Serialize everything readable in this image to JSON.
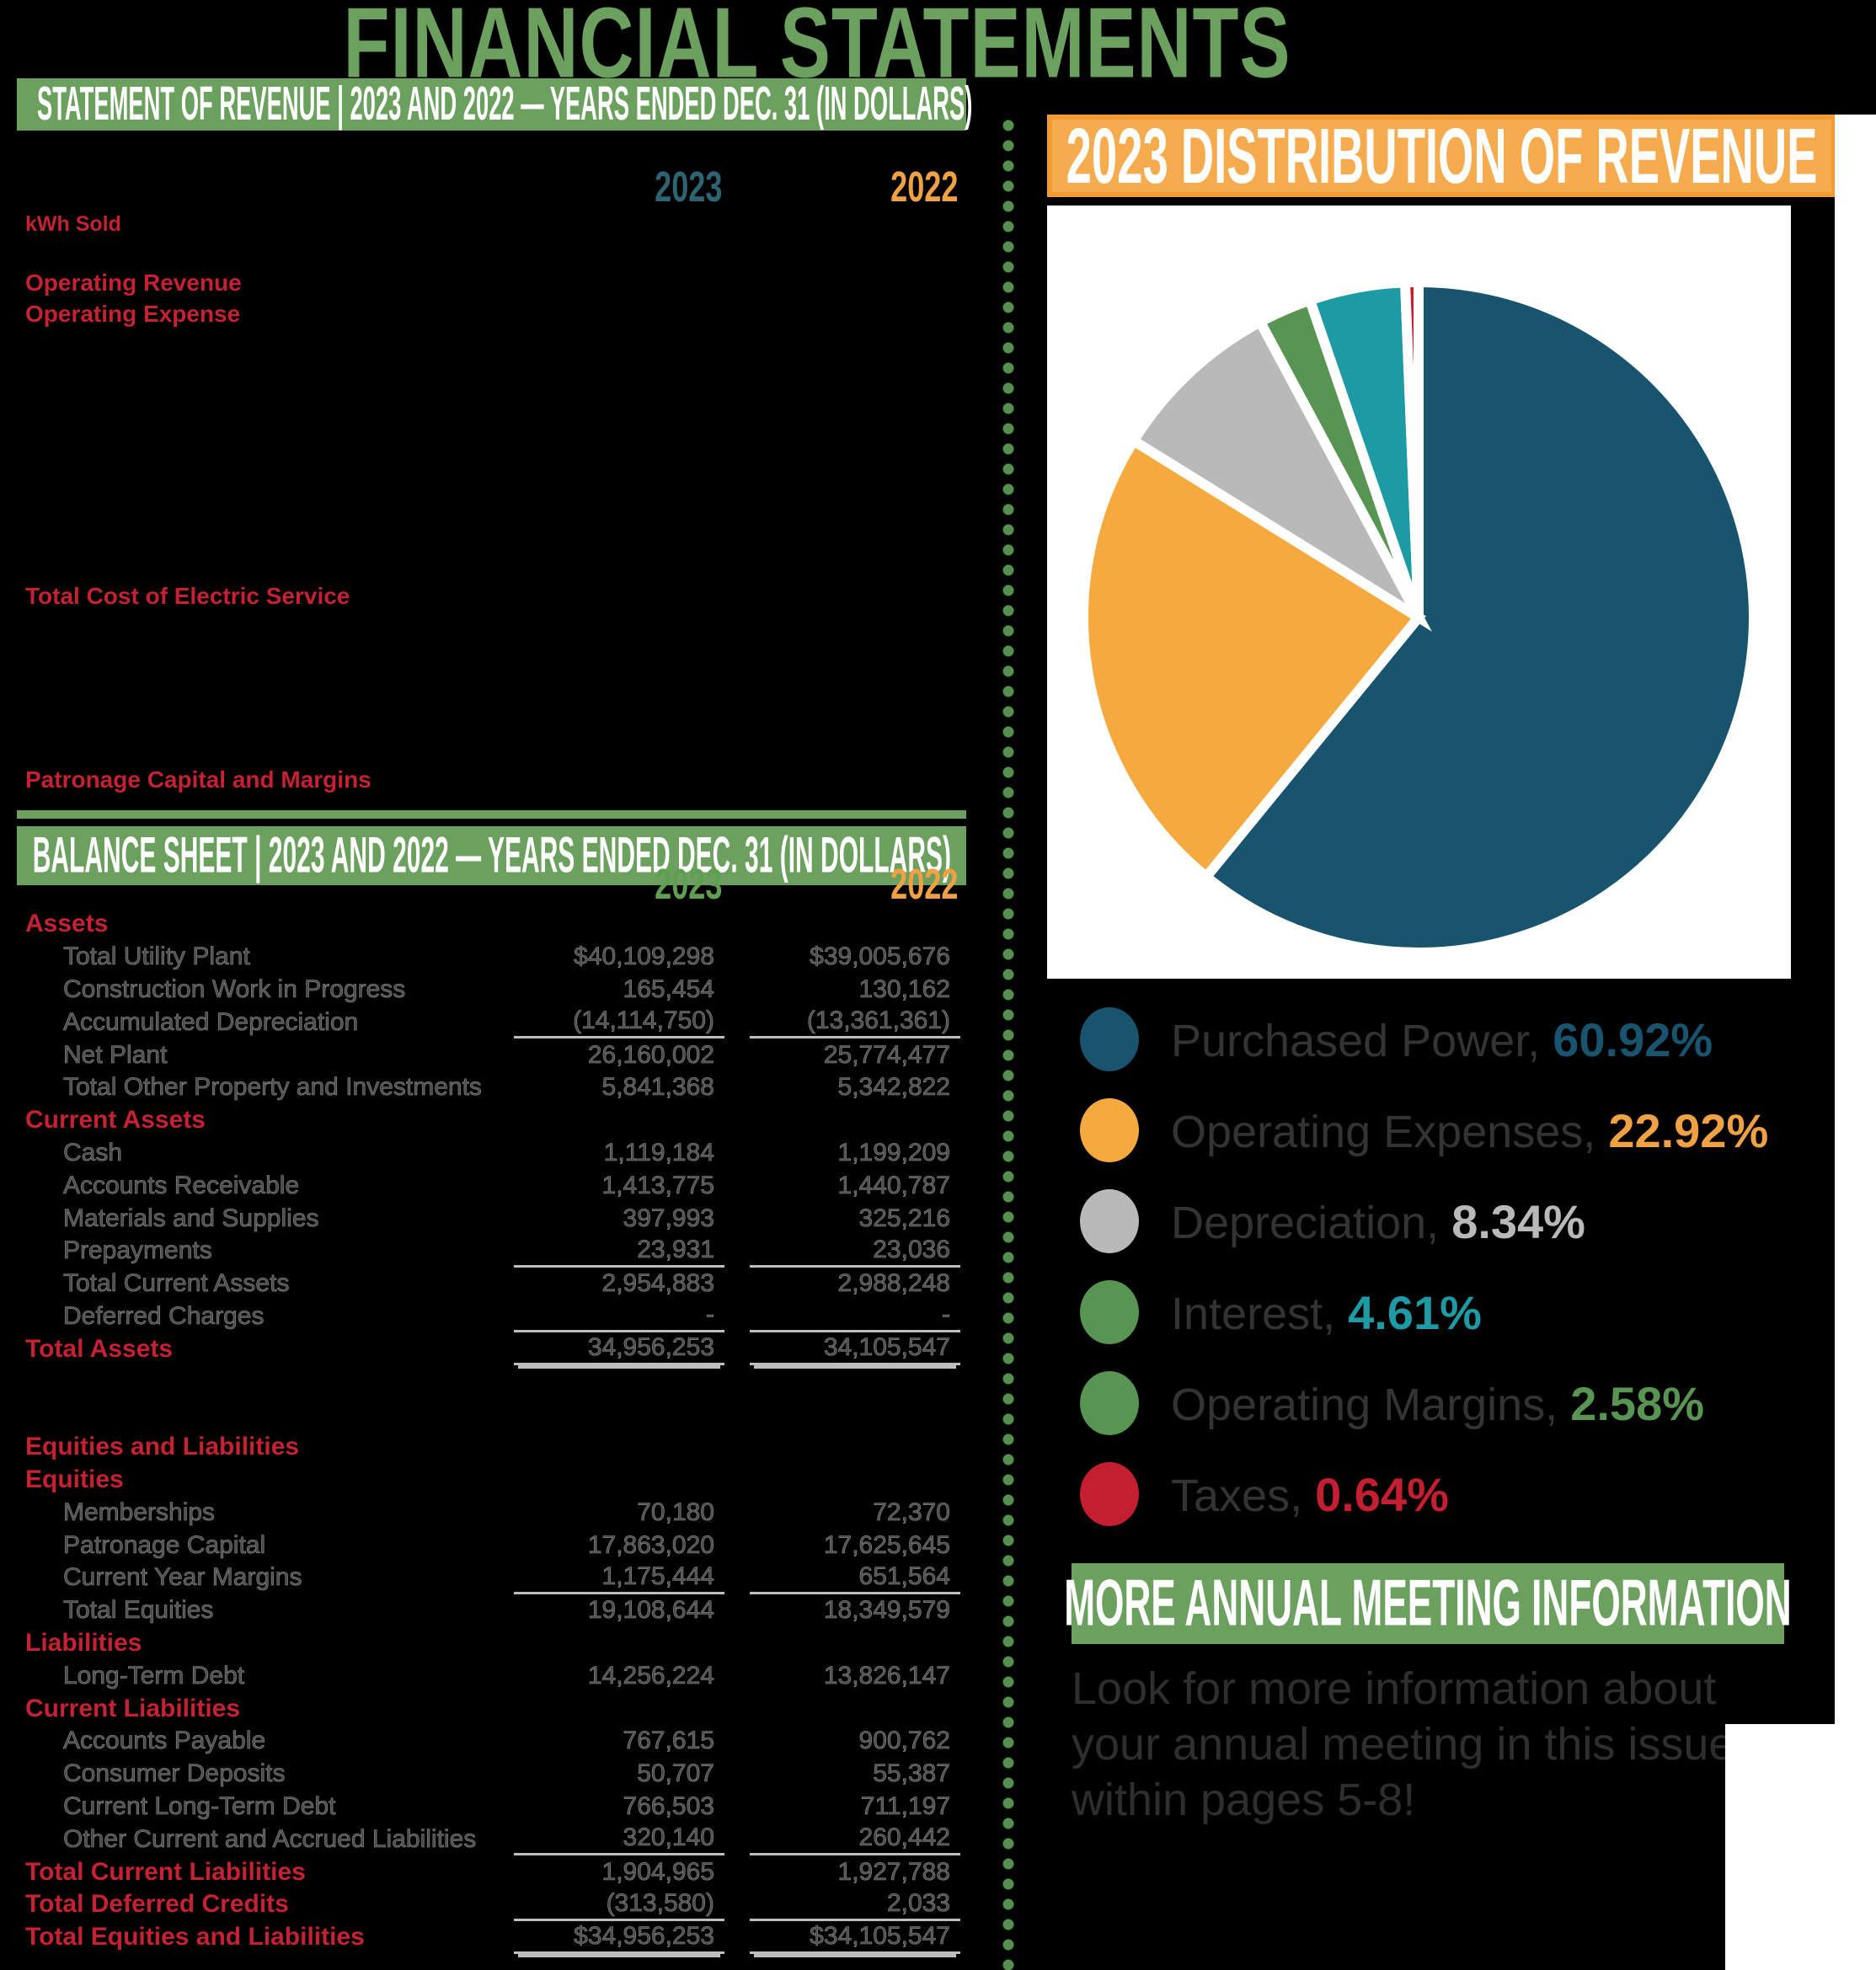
{
  "title": "FINANCIAL STATEMENTS",
  "colors": {
    "green": "#6ba05e",
    "dot_green": "#55904e",
    "red": "#c42133",
    "teal": "#2d6472",
    "orange": "#f0a143",
    "orange_bar": "#f6ab4e",
    "orange_bar_border": "#f19c33",
    "balance_2023": "#5f9e53",
    "panel_white": "#ffffff",
    "row_text": "#4a4a4a",
    "body_text": "#2e2e2e"
  },
  "revenue_section": {
    "header": "STATEMENT OF REVENUE | 2023 AND 2022 — YEARS ENDED DEC. 31 (IN DOLLARS)",
    "col_2023": "2023",
    "col_2022": "2022",
    "labels": [
      "kWh Sold",
      "Operating Revenue",
      "Operating Expense",
      "Total Cost of Electric Service",
      "Patronage Capital and Margins"
    ]
  },
  "balance_section": {
    "header": "BALANCE SHEET | 2023 AND 2022 — YEARS ENDED DEC. 31 (IN DOLLARS)",
    "col_2023": "2023",
    "col_2022": "2022",
    "rows": [
      {
        "label": "Assets",
        "v1": "",
        "v2": "",
        "cls": "red",
        "u": ""
      },
      {
        "label": "Total Utility Plant",
        "v1": "$40,109,298",
        "v2": "$39,005,676",
        "cls": "item",
        "u": ""
      },
      {
        "label": "Construction Work in Progress",
        "v1": "165,454",
        "v2": "130,162",
        "cls": "item",
        "u": ""
      },
      {
        "label": "Accumulated Depreciation",
        "v1": "(14,114,750)",
        "v2": "(13,361,361)",
        "cls": "item",
        "u": "s"
      },
      {
        "label": "Net Plant",
        "v1": "26,160,002",
        "v2": "25,774,477",
        "cls": "item",
        "u": ""
      },
      {
        "label": "Total Other Property and Investments",
        "v1": "5,841,368",
        "v2": "5,342,822",
        "cls": "item",
        "u": ""
      },
      {
        "label": "Current Assets",
        "v1": "",
        "v2": "",
        "cls": "red",
        "u": ""
      },
      {
        "label": "Cash",
        "v1": "1,119,184",
        "v2": "1,199,209",
        "cls": "item",
        "u": ""
      },
      {
        "label": "Accounts Receivable",
        "v1": "1,413,775",
        "v2": "1,440,787",
        "cls": "item",
        "u": ""
      },
      {
        "label": "Materials and Supplies",
        "v1": "397,993",
        "v2": "325,216",
        "cls": "item",
        "u": ""
      },
      {
        "label": "Prepayments",
        "v1": "23,931",
        "v2": "23,036",
        "cls": "item",
        "u": "s"
      },
      {
        "label": "Total Current Assets",
        "v1": "2,954,883",
        "v2": "2,988,248",
        "cls": "item",
        "u": ""
      },
      {
        "label": "Deferred Charges",
        "v1": "-",
        "v2": "-",
        "cls": "item",
        "u": "s"
      },
      {
        "label": "Total Assets",
        "v1": "34,956,253",
        "v2": "34,105,547",
        "cls": "red",
        "u": "d"
      },
      {
        "label": "",
        "v1": "",
        "v2": "",
        "cls": "blank",
        "u": ""
      },
      {
        "label": "",
        "v1": "",
        "v2": "",
        "cls": "blank",
        "u": ""
      },
      {
        "label": "Equities and Liabilities",
        "v1": "",
        "v2": "",
        "cls": "red",
        "u": ""
      },
      {
        "label": "Equities",
        "v1": "",
        "v2": "",
        "cls": "red",
        "u": ""
      },
      {
        "label": "Memberships",
        "v1": "70,180",
        "v2": "72,370",
        "cls": "item",
        "u": ""
      },
      {
        "label": "Patronage Capital",
        "v1": "17,863,020",
        "v2": "17,625,645",
        "cls": "item",
        "u": ""
      },
      {
        "label": "Current Year Margins",
        "v1": "1,175,444",
        "v2": "651,564",
        "cls": "item",
        "u": "s"
      },
      {
        "label": "Total Equities",
        "v1": "19,108,644",
        "v2": "18,349,579",
        "cls": "item",
        "u": ""
      },
      {
        "label": "Liabilities",
        "v1": "",
        "v2": "",
        "cls": "red",
        "u": ""
      },
      {
        "label": "Long-Term Debt",
        "v1": "14,256,224",
        "v2": "13,826,147",
        "cls": "item",
        "u": ""
      },
      {
        "label": "Current Liabilities",
        "v1": "",
        "v2": "",
        "cls": "red",
        "u": ""
      },
      {
        "label": "Accounts Payable",
        "v1": "767,615",
        "v2": "900,762",
        "cls": "item",
        "u": ""
      },
      {
        "label": "Consumer Deposits",
        "v1": "50,707",
        "v2": "55,387",
        "cls": "item",
        "u": ""
      },
      {
        "label": "Current Long-Term Debt",
        "v1": "766,503",
        "v2": "711,197",
        "cls": "item",
        "u": ""
      },
      {
        "label": "Other Current and Accrued Liabilities",
        "v1": "320,140",
        "v2": "260,442",
        "cls": "item",
        "u": "s"
      },
      {
        "label": "Total Current Liabilities",
        "v1": "1,904,965",
        "v2": "1,927,788",
        "cls": "red",
        "u": ""
      },
      {
        "label": "Total Deferred Credits",
        "v1": "(313,580)",
        "v2": "2,033",
        "cls": "red",
        "u": "s"
      },
      {
        "label": "Total Equities and Liabilities",
        "v1": "$34,956,253",
        "v2": "$34,105,547",
        "cls": "red",
        "u": "d"
      }
    ]
  },
  "distribution_section": {
    "header": "2023 DISTRIBUTION OF REVENUE",
    "legend": [
      {
        "label": "Purchased Power,",
        "value": "60.92%",
        "dot_color": "#19546e",
        "value_color": "#19546e"
      },
      {
        "label": "Operating Expenses,",
        "value": "22.92%",
        "dot_color": "#f5a93f",
        "value_color": "#f0a143"
      },
      {
        "label": "Depreciation,",
        "value": "8.34%",
        "dot_color": "#b9b9b9",
        "value_color": "#b9b9b9"
      },
      {
        "label": "Interest,",
        "value": "4.61%",
        "dot_color": "#589552",
        "value_color": "#1d9aa3"
      },
      {
        "label": "Operating Margins,",
        "value": "2.58%",
        "dot_color": "#589552",
        "value_color": "#589552"
      },
      {
        "label": "Taxes,",
        "value": "0.64%",
        "dot_color": "#c41e31",
        "value_color": "#c41e31"
      }
    ]
  },
  "chart_data": {
    "type": "pie",
    "title": "2023 DISTRIBUTION OF REVENUE",
    "slices": [
      {
        "label": "Purchased Power",
        "value": 60.92,
        "color": "#19546e"
      },
      {
        "label": "Operating Expenses",
        "value": 22.92,
        "color": "#f5a93f"
      },
      {
        "label": "Depreciation",
        "value": 8.34,
        "color": "#b9b9b9"
      },
      {
        "label": "Operating Margins",
        "value": 2.58,
        "color": "#589552"
      },
      {
        "label": "Interest",
        "value": 4.61,
        "color": "#1d9aa3"
      },
      {
        "label": "Taxes",
        "value": 0.64,
        "color": "#c41e31"
      }
    ],
    "values_unit": "percent of revenue",
    "start_angle_deg": 0,
    "direction": "clockwise",
    "legend_position": "below"
  },
  "meeting_section": {
    "header": "MORE ANNUAL MEETING INFORMATION",
    "body_lines": [
      "Look for more information about",
      "your annual meeting in this issue",
      "within pages 5-8!"
    ]
  }
}
